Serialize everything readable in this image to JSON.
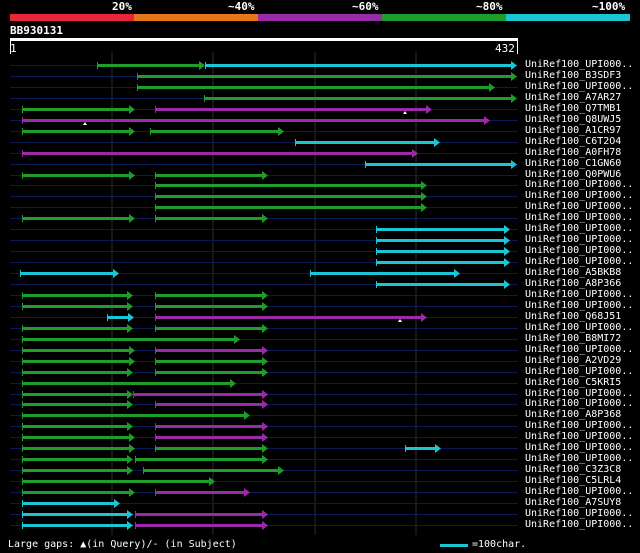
{
  "header": {
    "percent_labels": [
      "20%",
      "~40%",
      "~60%",
      "~80%",
      "~100%"
    ],
    "identity_colors": [
      "#e8253b",
      "#e6761a",
      "#9b2aa8",
      "#1f9d2a",
      "#1ac6d6"
    ]
  },
  "query": {
    "id": "BB930131",
    "ruler_start": "1",
    "ruler_end": "432"
  },
  "hits": [
    {
      "label": "UniRef100_UPI000.."
    },
    {
      "label": "UniRef100_B3SDF3"
    },
    {
      "label": "UniRef100_UPI000.."
    },
    {
      "label": "UniRef100_A7AR27"
    },
    {
      "label": "UniRef100_Q7TMB1"
    },
    {
      "label": "UniRef100_Q8UWJ5"
    },
    {
      "label": "UniRef100_A1CR97"
    },
    {
      "label": "UniRef100_C6T2O4"
    },
    {
      "label": "UniRef100_A0FH78"
    },
    {
      "label": "UniRef100_C1GN60"
    },
    {
      "label": "UniRef100_Q0PWU6"
    },
    {
      "label": "UniRef100_UPI000.."
    },
    {
      "label": "UniRef100_UPI000.."
    },
    {
      "label": "UniRef100_UPI000.."
    },
    {
      "label": "UniRef100_UPI000.."
    },
    {
      "label": "UniRef100_UPI000.."
    },
    {
      "label": "UniRef100_UPI000.."
    },
    {
      "label": "UniRef100_UPI000.."
    },
    {
      "label": "UniRef100_UPI000.."
    },
    {
      "label": "UniRef100_A5BKB8"
    },
    {
      "label": "UniRef100_A8P366"
    },
    {
      "label": "UniRef100_UPI000.."
    },
    {
      "label": "UniRef100_UPI000.."
    },
    {
      "label": "UniRef100_Q68J51"
    },
    {
      "label": "UniRef100_UPI000.."
    },
    {
      "label": "UniRef100_B8MI72"
    },
    {
      "label": "UniRef100_UPI000.."
    },
    {
      "label": "UniRef100_A2VD29"
    },
    {
      "label": "UniRef100_UPI000.."
    },
    {
      "label": "UniRef100_C5KRI5"
    },
    {
      "label": "UniRef100_UPI000.."
    },
    {
      "label": "UniRef100_UPI000.."
    },
    {
      "label": "UniRef100_A8P368"
    },
    {
      "label": "UniRef100_UPI000.."
    },
    {
      "label": "UniRef100_UPI000.."
    },
    {
      "label": "UniRef100_UPI000.."
    },
    {
      "label": "UniRef100_UPI000.."
    },
    {
      "label": "UniRef100_C3Z3C8"
    },
    {
      "label": "UniRef100_C5LRL4"
    },
    {
      "label": "UniRef100_UPI000.."
    },
    {
      "label": "UniRef100_A7SUY8"
    },
    {
      "label": "UniRef100_UPI000.."
    },
    {
      "label": "UniRef100_UPI000.."
    }
  ],
  "footer": {
    "gaps_text": "Large gaps: ▲(in Query)/- (in Subject)",
    "legend_text": "=100char."
  }
}
